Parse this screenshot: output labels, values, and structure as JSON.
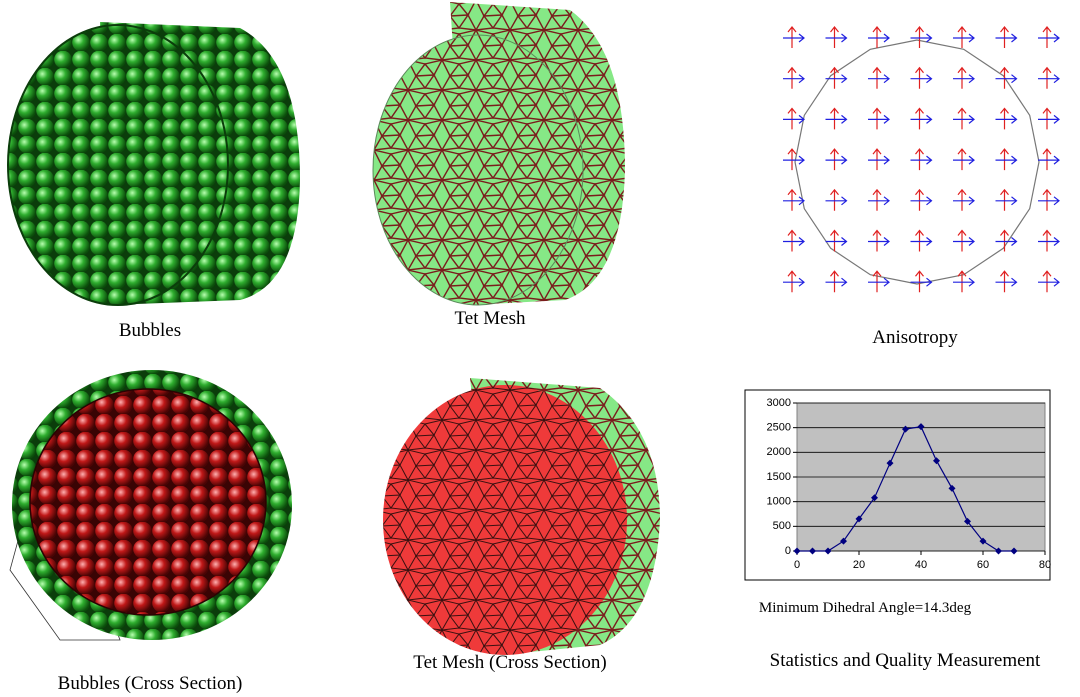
{
  "captions": [
    "Bubbles",
    "Tet Mesh",
    "Anisotropy",
    "Bubbles (Cross Section)",
    "Tet Mesh (Cross Section)",
    "Statistics and Quality Measurement"
  ],
  "chart_data": {
    "type": "line",
    "x": [
      0,
      5,
      10,
      15,
      20,
      25,
      30,
      35,
      40,
      45,
      50,
      55,
      60,
      65,
      70
    ],
    "values": [
      0,
      0,
      0,
      200,
      650,
      1080,
      1780,
      2470,
      2520,
      1830,
      1270,
      600,
      200,
      0,
      0
    ],
    "color": "#000080",
    "xlim": [
      0,
      80
    ],
    "xticks": [
      0,
      20,
      40,
      60,
      80
    ],
    "ylim": [
      0,
      3000
    ],
    "yticks": [
      0,
      500,
      1000,
      1500,
      2000,
      2500,
      3000
    ],
    "grid": true,
    "plot_background": "#c0c0c0",
    "annotation": "Minimum Dihedral Angle=14.3deg"
  }
}
